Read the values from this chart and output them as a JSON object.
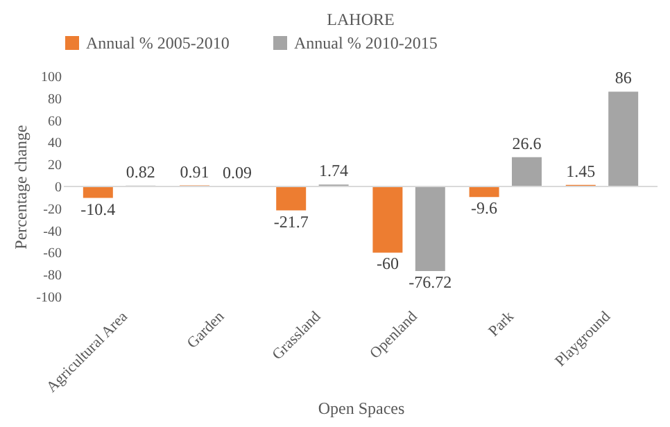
{
  "chart_data": {
    "type": "bar",
    "title": "LAHORE",
    "xlabel": "Open Spaces",
    "ylabel": "Percentage change",
    "categories": [
      "Agricultural Area",
      "Garden",
      "Grassland",
      "Openland",
      "Park",
      "Playground"
    ],
    "series": [
      {
        "name": "Annual % 2005-2010",
        "color": "#ed7d31",
        "values": [
          -10.4,
          0.91,
          -21.7,
          -60,
          -9.6,
          1.45
        ]
      },
      {
        "name": "Annual % 2010-2015",
        "color": "#a5a5a5",
        "values": [
          0.82,
          0.09,
          1.74,
          -76.72,
          26.6,
          86
        ]
      }
    ],
    "ylim": [
      -100,
      100
    ],
    "yticks": [
      -100,
      -80,
      -60,
      -40,
      -20,
      0,
      20,
      40,
      60,
      80,
      100
    ],
    "data_labels": true,
    "legend": "top"
  }
}
